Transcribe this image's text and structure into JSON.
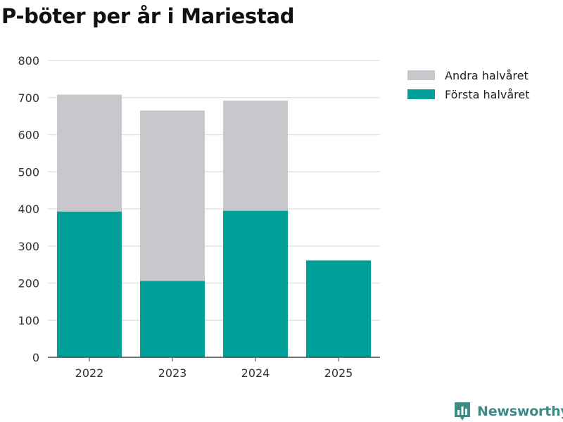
{
  "chart_data": {
    "type": "bar",
    "stacked": true,
    "title": "P-böter per år i Mariestad",
    "categories": [
      "2022",
      "2023",
      "2024",
      "2025"
    ],
    "series": [
      {
        "name": "Första halvåret",
        "values": [
          393,
          206,
          395,
          261
        ],
        "color": "#00a099"
      },
      {
        "name": "Andra halvåret",
        "values": [
          315,
          459,
          297,
          0
        ],
        "color": "#c8c8cc"
      }
    ],
    "legend_order": [
      "Andra halvåret",
      "Första halvåret"
    ],
    "ylim": [
      0,
      800
    ],
    "yticks": [
      0,
      100,
      200,
      300,
      400,
      500,
      600,
      700,
      800
    ],
    "xlabel": "",
    "ylabel": "",
    "grid": true,
    "legend_position": "top-right"
  },
  "branding": {
    "name": "Newsworthy",
    "color": "#3d8a87"
  }
}
